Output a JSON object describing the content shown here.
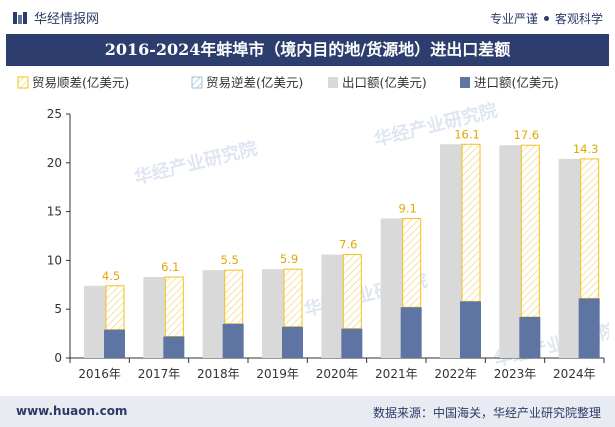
{
  "header": {
    "brand_name": "华经情报网",
    "tagline_left": "专业严谨",
    "tagline_right": "客观科学"
  },
  "footer": {
    "website": "www.huaon.com",
    "source": "数据来源：中国海关，华经产业研究院整理"
  },
  "watermark": "华经产业研究院",
  "colors": {
    "title_bg": "#2d3e6e",
    "export_bar": "#d9d9d9",
    "import_bar": "#5e74a3",
    "surplus": "#f2c11b",
    "deficit": "#9dc3d8",
    "label": "#e0a800"
  },
  "chart_data": {
    "type": "bar",
    "title": "2016-2024年蚌埠市（境内目的地/货源地）进出口差额",
    "categories": [
      "2016年",
      "2017年",
      "2018年",
      "2019年",
      "2020年",
      "2021年",
      "2022年",
      "2023年",
      "2024年"
    ],
    "series": [
      {
        "name": "贸易顺差(亿美元)",
        "values": [
          4.5,
          6.1,
          5.5,
          5.9,
          7.6,
          9.1,
          16.1,
          17.6,
          14.3
        ]
      },
      {
        "name": "贸易逆差(亿美元)",
        "values": [
          0,
          0,
          0,
          0,
          0,
          0,
          0,
          0,
          0
        ]
      },
      {
        "name": "出口额(亿美元)",
        "values": [
          7.4,
          8.3,
          9.0,
          9.1,
          10.6,
          14.3,
          21.9,
          21.8,
          20.4
        ]
      },
      {
        "name": "进口额(亿美元)",
        "values": [
          2.9,
          2.2,
          3.5,
          3.2,
          3.0,
          5.2,
          5.8,
          4.2,
          6.1
        ]
      }
    ],
    "yticks": [
      0,
      5,
      10,
      15,
      20,
      25
    ],
    "ylim": [
      0,
      25
    ],
    "legend_position": "top",
    "grid": false
  }
}
